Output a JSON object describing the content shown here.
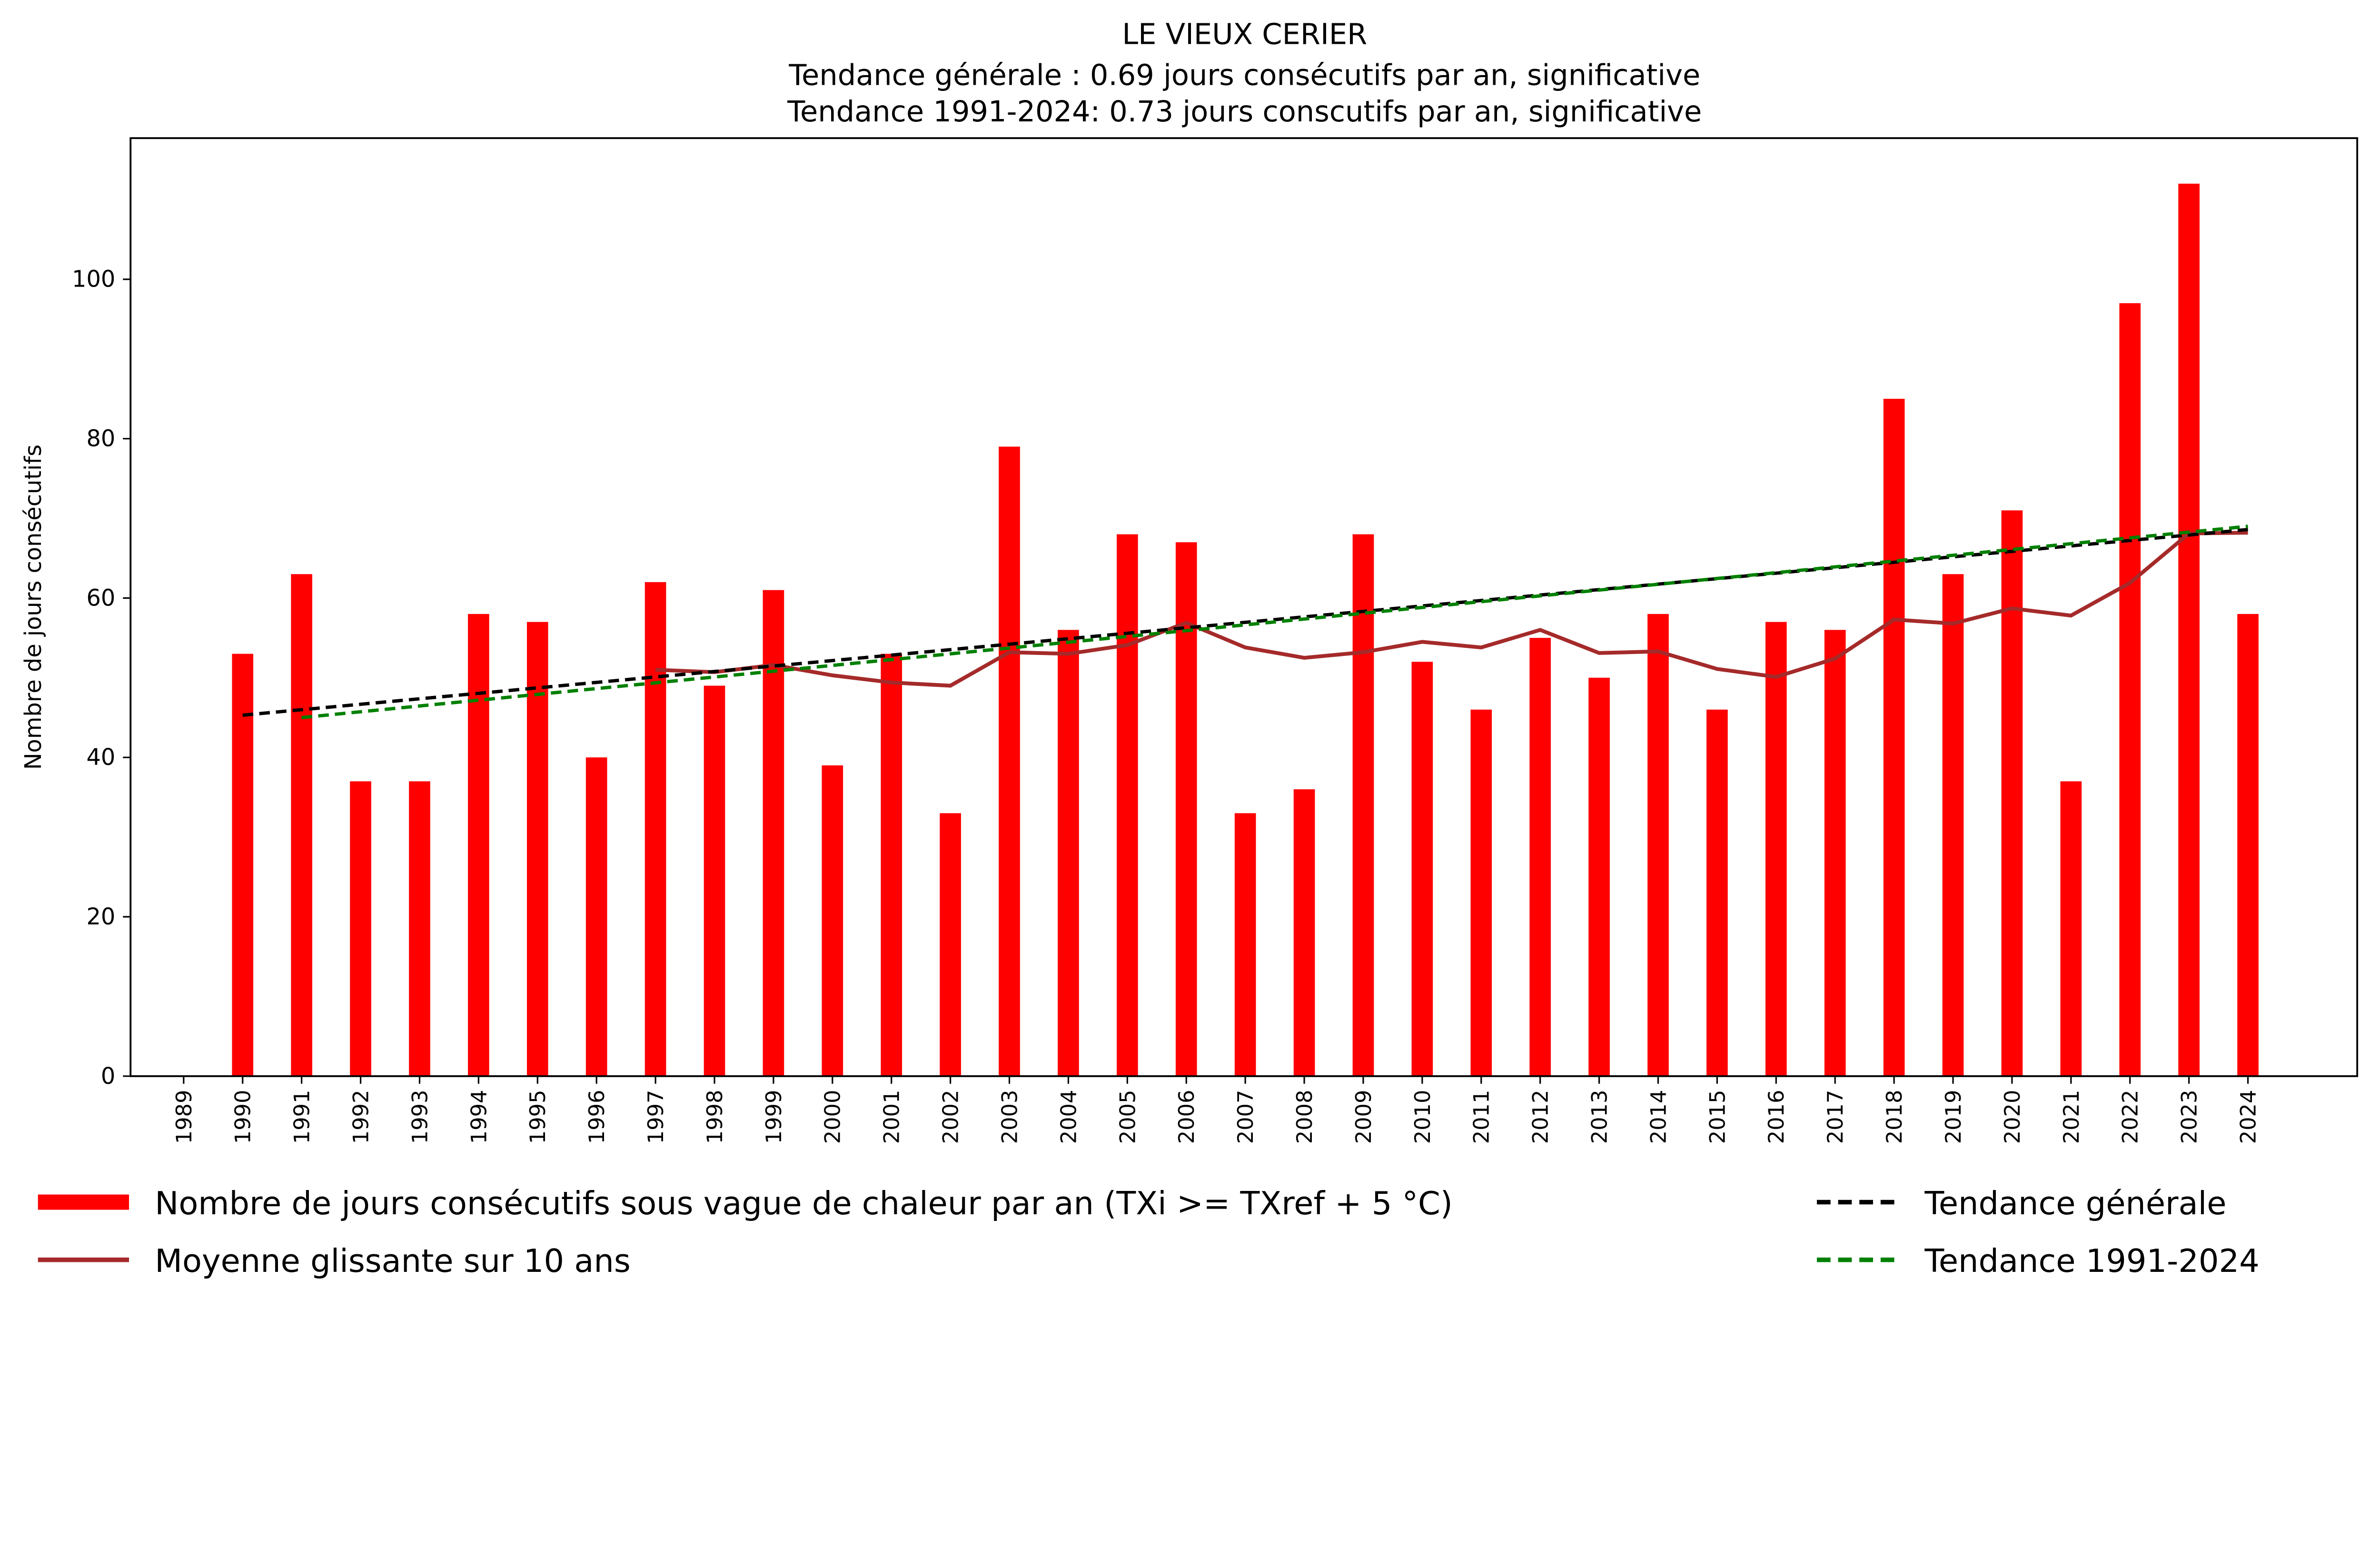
{
  "chart_data": {
    "type": "bar",
    "title": "LE VIEUX CERIER",
    "subtitle_1": "Tendance générale : 0.69 jours consécutifs par an, significative",
    "subtitle_2": "Tendance 1991-2024: 0.73 jours conscutifs par an, significative",
    "xlabel": "",
    "ylabel": "Nombre de jours consécutifs",
    "ylim": [
      0,
      117.7
    ],
    "yticks": [
      0,
      20,
      40,
      60,
      80,
      100
    ],
    "categories": [
      "1989",
      "1990",
      "1991",
      "1992",
      "1993",
      "1994",
      "1995",
      "1996",
      "1997",
      "1998",
      "1999",
      "2000",
      "2001",
      "2002",
      "2003",
      "2004",
      "2005",
      "2006",
      "2007",
      "2008",
      "2009",
      "2010",
      "2011",
      "2012",
      "2013",
      "2014",
      "2015",
      "2016",
      "2017",
      "2018",
      "2019",
      "2020",
      "2021",
      "2022",
      "2023",
      "2024"
    ],
    "series": [
      {
        "name": "Nombre de jours consécutifs sous vague de chaleur par an (TXi >= TXref + 5 °C)",
        "type": "bar",
        "color": "#ff0000",
        "values": [
          0,
          53,
          63,
          37,
          37,
          58,
          57,
          40,
          62,
          49,
          61,
          39,
          53,
          33,
          79,
          56,
          68,
          67,
          33,
          36,
          68,
          52,
          46,
          55,
          50,
          58,
          46,
          57,
          56,
          85,
          63,
          71,
          37,
          97,
          112,
          58
        ]
      },
      {
        "name": "Moyenne glissante sur 10 ans",
        "type": "line",
        "color": "#a52a2a",
        "x": [
          1997,
          1998,
          1999,
          2000,
          2001,
          2002,
          2003,
          2004,
          2005,
          2006,
          2007,
          2008,
          2009,
          2010,
          2011,
          2012,
          2013,
          2014,
          2015,
          2016,
          2017,
          2018,
          2019,
          2020,
          2021,
          2022,
          2023,
          2024
        ],
        "values": [
          51.0,
          50.7,
          51.6,
          50.3,
          49.4,
          49.0,
          53.2,
          53.0,
          54.1,
          56.9,
          53.8,
          52.5,
          53.2,
          54.5,
          53.8,
          56.0,
          53.1,
          53.3,
          51.1,
          50.1,
          52.4,
          57.3,
          56.8,
          58.7,
          57.8,
          61.9,
          68.1,
          68.2
        ]
      },
      {
        "name": "Tendance générale",
        "type": "line",
        "style": "dashed",
        "color": "#000000",
        "x": [
          1990,
          2024
        ],
        "values": [
          45.3,
          68.6
        ]
      },
      {
        "name": "Tendance 1991-2024",
        "type": "line",
        "style": "dashed",
        "color": "#008000",
        "x": [
          1991,
          2024
        ],
        "values": [
          45.0,
          69.0
        ]
      }
    ],
    "legend_placement": "bottom",
    "grid": false
  }
}
